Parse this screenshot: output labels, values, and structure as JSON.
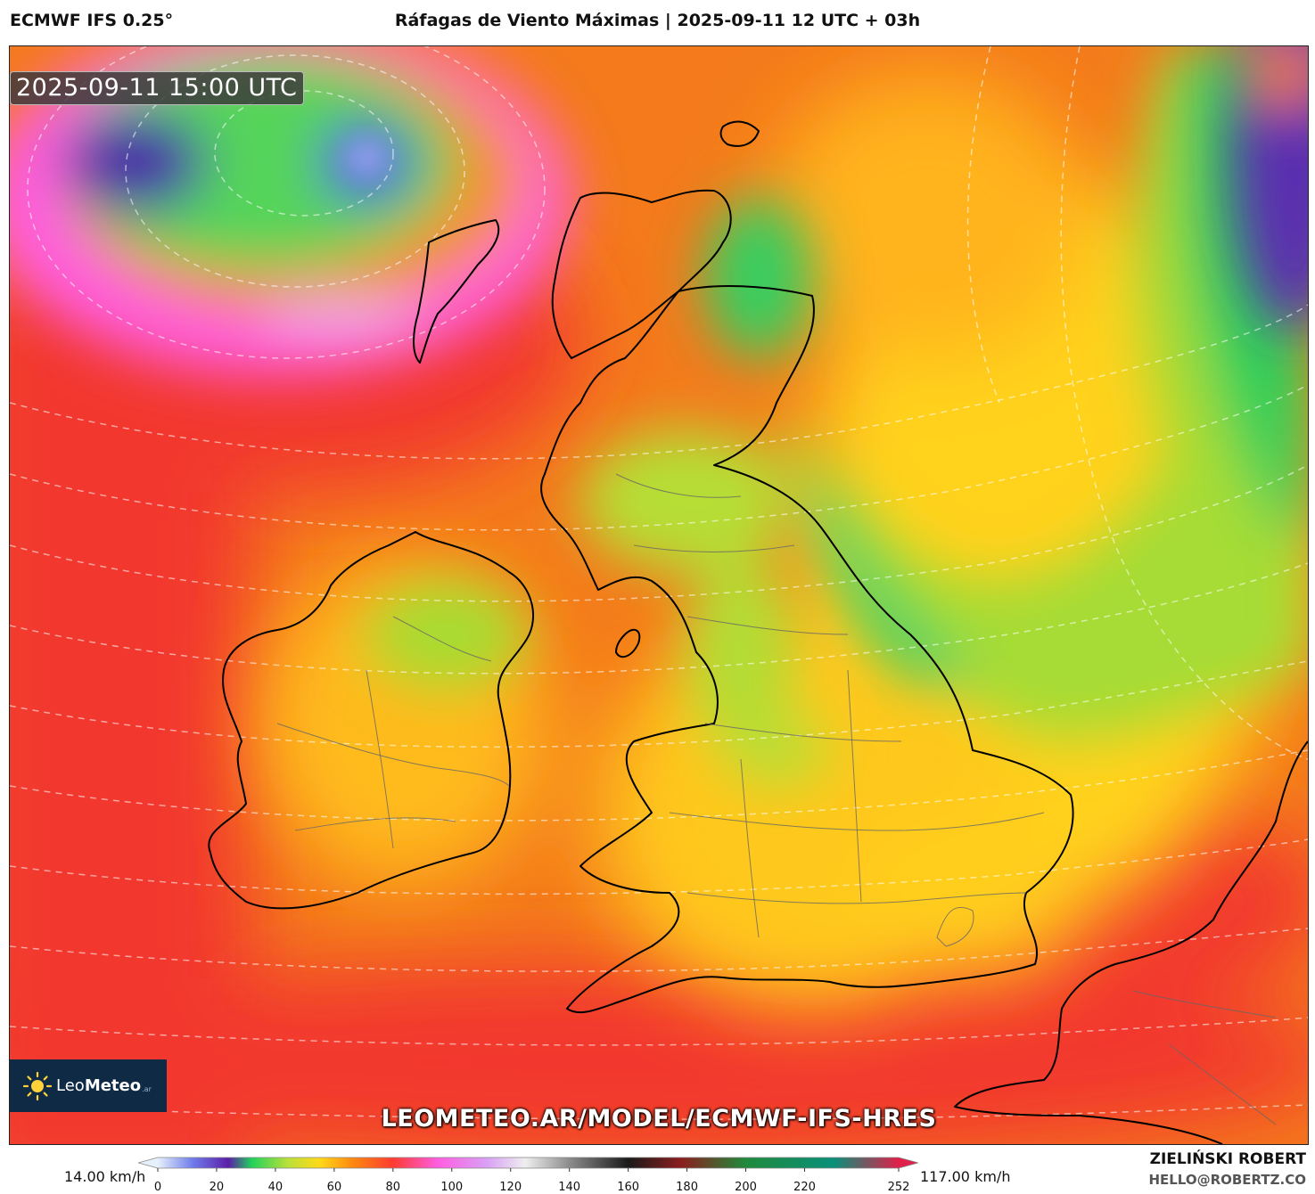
{
  "header": {
    "model": "ECMWF IFS 0.25°",
    "title": "Ráfagas de Viento Máximas | 2025-09-11 12 UTC + 03h"
  },
  "map": {
    "valid_time": "2025-09-11 15:00 UTC",
    "watermark": "LEOMETEO.AR/MODEL/ECMWF-IFS-HRES",
    "logo": {
      "brand_light": "Leo",
      "brand_bold": "Meteo",
      "suffix": ".ar"
    }
  },
  "colorbar": {
    "min_label": "14.00 km/h",
    "max_label": "117.00 km/h",
    "ticks": [
      "0",
      "20",
      "40",
      "60",
      "80",
      "100",
      "120",
      "140",
      "160",
      "180",
      "200",
      "220",
      "252"
    ],
    "stops": [
      {
        "value": 0,
        "color": "#e6f0fb"
      },
      {
        "value": 12,
        "color": "#6f7bea"
      },
      {
        "value": 24,
        "color": "#5a1fa8"
      },
      {
        "value": 32,
        "color": "#22d25a"
      },
      {
        "value": 44,
        "color": "#b7e03a"
      },
      {
        "value": 55,
        "color": "#ffd91a"
      },
      {
        "value": 66,
        "color": "#ff8a10"
      },
      {
        "value": 80,
        "color": "#ff3b30"
      },
      {
        "value": 95,
        "color": "#ff5ce0"
      },
      {
        "value": 112,
        "color": "#d9a0f5"
      },
      {
        "value": 125,
        "color": "#eeeeee"
      },
      {
        "value": 140,
        "color": "#8c8c8c"
      },
      {
        "value": 160,
        "color": "#1a1a1a"
      },
      {
        "value": 178,
        "color": "#8b1e1e"
      },
      {
        "value": 200,
        "color": "#1f8a3c"
      },
      {
        "value": 230,
        "color": "#0a8f7a"
      },
      {
        "value": 252,
        "color": "#e0204a"
      }
    ]
  },
  "credits": {
    "author": "ZIELIŃSKI ROBERT",
    "email": "HELLO@ROBERTZ.CO"
  }
}
